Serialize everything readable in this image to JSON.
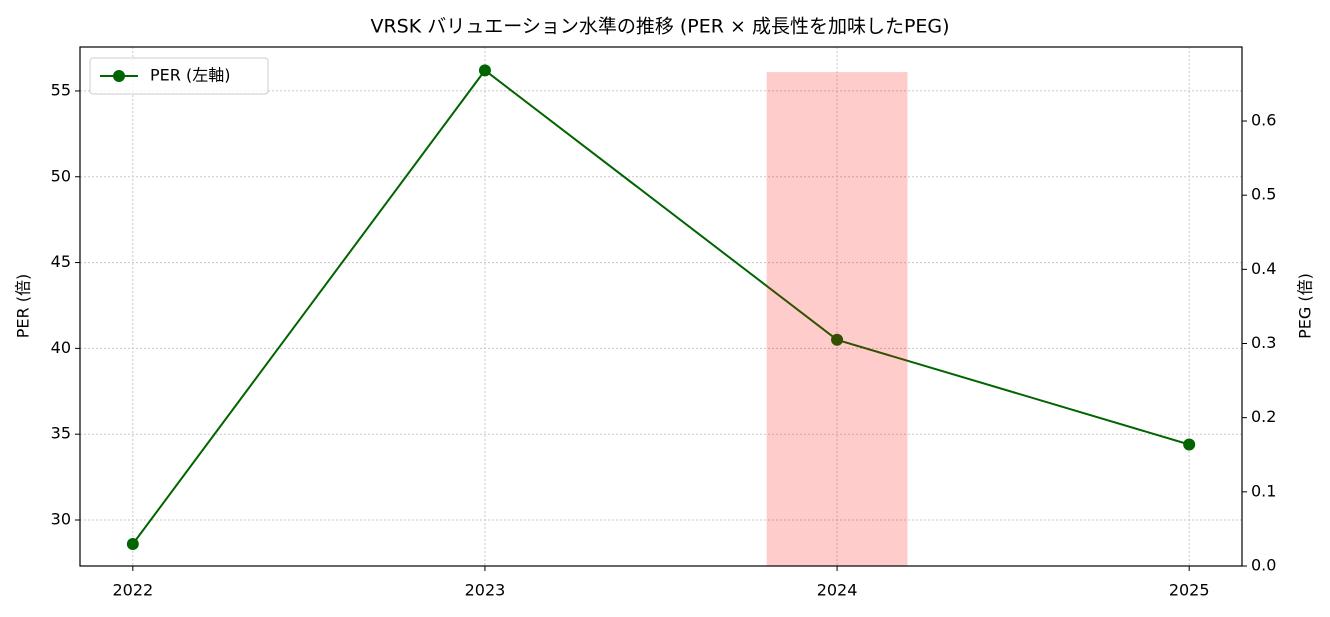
{
  "chart_data": {
    "type": "line",
    "title": "VRSK バリュエーション水準の推移 (PER × 成長性を加味したPEG)",
    "x": [
      2022,
      2023,
      2024,
      2025
    ],
    "xlim": [
      2021.85,
      2025.15
    ],
    "xticks": [
      2022,
      2023,
      2024,
      2025
    ],
    "ylabel": "PER (倍)",
    "ylim": [
      27.32,
      57.56
    ],
    "yticks": [
      30,
      35,
      40,
      45,
      50,
      55
    ],
    "y2label": "PEG (倍)",
    "y2lim": [
      0,
      0.6998
    ],
    "y2ticks": [
      {
        "value": 0,
        "label": "0.0"
      },
      0.1,
      0.2,
      0.3,
      0.4,
      0.5,
      0.6
    ],
    "grid": true,
    "legend": "upper left",
    "series": [
      {
        "name": "PER (左軸)",
        "type": "line",
        "color": "#006400",
        "values": [
          28.6,
          56.2,
          40.5,
          34.4
        ]
      },
      {
        "type": "bar",
        "axis": "y2",
        "color": "#ff0000",
        "opacity": 0.2,
        "bar_width": 0.4,
        "values": [
          null,
          null,
          0.666,
          null
        ]
      }
    ]
  }
}
